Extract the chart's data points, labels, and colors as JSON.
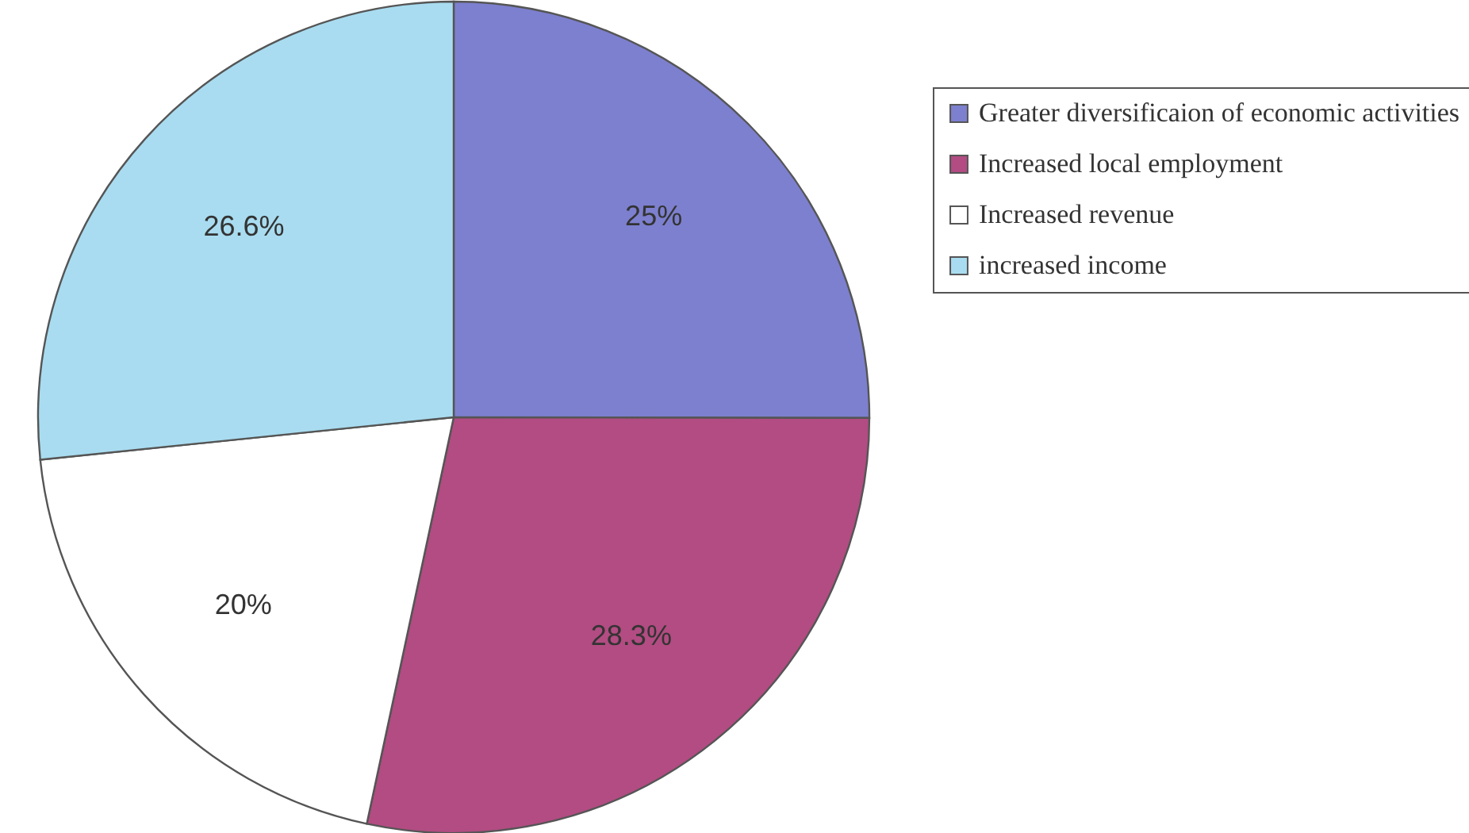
{
  "chart_data": {
    "type": "pie",
    "categories": [
      "Greater diversificaion of economic activities",
      "Increased local employment",
      "Increased revenue",
      "increased income"
    ],
    "values": [
      25,
      28.3,
      20,
      26.6
    ],
    "colors": [
      "#7d80cf",
      "#b24c82",
      "#ffffff",
      "#a9dcf0"
    ],
    "value_labels": [
      "25%",
      "28.3%",
      "20%",
      "26.6%"
    ],
    "legend": "top right"
  }
}
